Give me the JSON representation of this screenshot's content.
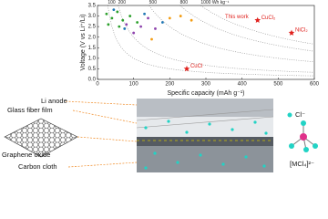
{
  "chart_data": {
    "type": "scatter",
    "xlabel": "Specific capacity (mAh g⁻¹)",
    "ylabel": "Voltage (V vs Li⁺/Li)",
    "xlim": [
      0,
      600
    ],
    "xticks": [
      0,
      100,
      200,
      300,
      400,
      500,
      600
    ],
    "ylim": [
      0,
      3.5
    ],
    "yticks": [
      {
        "value": 0,
        "label": "0.0"
      },
      {
        "value": 0.5,
        "label": "0.5"
      },
      {
        "value": 1,
        "label": "1.0"
      },
      {
        "value": 1.5,
        "label": "1.5"
      },
      {
        "value": 2,
        "label": "2.0"
      },
      {
        "value": 2.5,
        "label": "2.5"
      },
      {
        "value": 3,
        "label": "3.0"
      },
      {
        "value": 3.5,
        "label": "3.5"
      }
    ],
    "energy_curves": [
      100,
      200,
      500,
      800,
      {
        "value": 1000,
        "label": "1000 Wh kg⁻¹"
      }
    ],
    "annotation": "This work",
    "series": [
      {
        "color": "#e0211d",
        "marker": "star",
        "x": [
          443,
          537,
          247
        ],
        "values": [
          2.8,
          2.2,
          0.5
        ],
        "labels": [
          "CuCl₂",
          "NiCl₂",
          "CuCl"
        ]
      },
      {
        "color": "#2ca02c",
        "marker": "circle",
        "x": [
          25,
          40,
          55,
          70,
          90,
          110,
          30,
          60
        ],
        "values": [
          3.1,
          2.9,
          3.2,
          2.8,
          3.0,
          2.7,
          2.6,
          2.5
        ],
        "labels": []
      },
      {
        "color": "#8e44ad",
        "marker": "circle",
        "x": [
          80,
          120,
          140,
          160,
          100
        ],
        "values": [
          2.6,
          2.5,
          2.9,
          2.4,
          2.2
        ],
        "labels": []
      },
      {
        "color": "#f39c12",
        "marker": "circle",
        "x": [
          200,
          230,
          260,
          150
        ],
        "values": [
          2.9,
          3.0,
          2.8,
          1.9
        ],
        "labels": []
      },
      {
        "color": "#1f77b4",
        "marker": "circle",
        "x": [
          45,
          75,
          130,
          180
        ],
        "values": [
          3.3,
          2.4,
          3.1,
          2.7
        ],
        "labels": []
      }
    ]
  },
  "diagram": {
    "left_labels": [
      "Li anode",
      "Glass fiber film",
      "Graphene oxide",
      "Carbon cloth"
    ],
    "right_labels": [
      "Cl⁻",
      "[MCl₄]²⁻"
    ]
  }
}
